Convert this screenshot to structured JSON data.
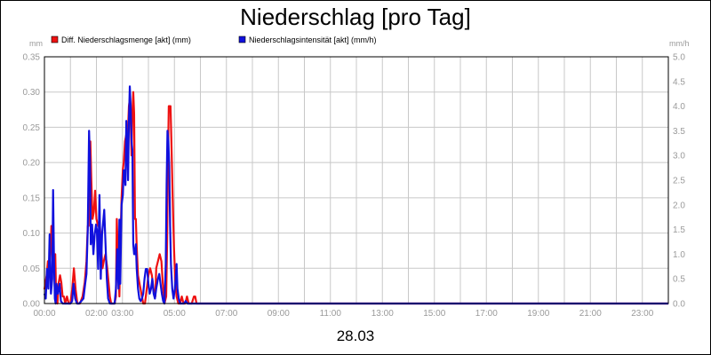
{
  "chart_data": {
    "type": "line",
    "title": "Niederschlag [pro Tag]",
    "xlabel": "28.03",
    "ylabel": "mm",
    "y2label": "mm/h",
    "x_domain": [
      0,
      1440
    ],
    "ylim": [
      0,
      0.35
    ],
    "y2lim": [
      0,
      5.0
    ],
    "yticks": [
      "0.00",
      "0.05",
      "0.10",
      "0.15",
      "0.20",
      "0.25",
      "0.30",
      "0.35"
    ],
    "y2ticks": [
      "0.0",
      "0.5",
      "1.0",
      "1.5",
      "2.0",
      "2.5",
      "3.0",
      "3.5",
      "4.0",
      "4.5",
      "5.0"
    ],
    "xticks": [
      {
        "t": 0,
        "label": "00:00"
      },
      {
        "t": 120,
        "label": "02:00"
      },
      {
        "t": 180,
        "label": "03:00"
      },
      {
        "t": 300,
        "label": "05:00"
      },
      {
        "t": 420,
        "label": "07:00"
      },
      {
        "t": 540,
        "label": "09:00"
      },
      {
        "t": 660,
        "label": "11:00"
      },
      {
        "t": 780,
        "label": "13:00"
      },
      {
        "t": 900,
        "label": "15:00"
      },
      {
        "t": 1020,
        "label": "17:00"
      },
      {
        "t": 1140,
        "label": "19:00"
      },
      {
        "t": 1260,
        "label": "21:00"
      },
      {
        "t": 1380,
        "label": "23:00"
      }
    ],
    "grid": true,
    "legend": "top-left",
    "series": [
      {
        "name": "Diff. Niederschlagsmenge [akt] (mm)",
        "color": "#ee1111",
        "axis": "left",
        "points": [
          [
            0,
            0.02
          ],
          [
            5,
            0.04
          ],
          [
            8,
            0.06
          ],
          [
            11,
            0.04
          ],
          [
            14,
            0.07
          ],
          [
            16,
            0.11
          ],
          [
            19,
            0.07
          ],
          [
            22,
            0.06
          ],
          [
            25,
            0.07
          ],
          [
            27,
            0.01
          ],
          [
            30,
            0.0
          ],
          [
            33,
            0.03
          ],
          [
            36,
            0.04
          ],
          [
            39,
            0.03
          ],
          [
            42,
            0.01
          ],
          [
            45,
            0.01
          ],
          [
            48,
            0.0
          ],
          [
            52,
            0.01
          ],
          [
            56,
            0.0
          ],
          [
            60,
            0.0
          ],
          [
            64,
            0.02
          ],
          [
            68,
            0.05
          ],
          [
            72,
            0.02
          ],
          [
            76,
            0.0
          ],
          [
            82,
            0.0
          ],
          [
            88,
            0.01
          ],
          [
            93,
            0.03
          ],
          [
            97,
            0.06
          ],
          [
            100,
            0.11
          ],
          [
            102,
            0.11
          ],
          [
            104,
            0.17
          ],
          [
            106,
            0.23
          ],
          [
            108,
            0.18
          ],
          [
            111,
            0.12
          ],
          [
            114,
            0.13
          ],
          [
            117,
            0.16
          ],
          [
            120,
            0.12
          ],
          [
            124,
            0.11
          ],
          [
            128,
            0.11
          ],
          [
            131,
            0.08
          ],
          [
            134,
            0.05
          ],
          [
            137,
            0.06
          ],
          [
            141,
            0.07
          ],
          [
            145,
            0.05
          ],
          [
            148,
            0.03
          ],
          [
            151,
            0.01
          ],
          [
            154,
            0.0
          ],
          [
            158,
            0.0
          ],
          [
            162,
            0.0
          ],
          [
            165,
            0.01
          ],
          [
            167,
            0.12
          ],
          [
            170,
            0.06
          ],
          [
            173,
            0.01
          ],
          [
            176,
            0.1
          ],
          [
            178,
            0.15
          ],
          [
            181,
            0.19
          ],
          [
            183,
            0.2
          ],
          [
            186,
            0.23
          ],
          [
            189,
            0.24
          ],
          [
            191,
            0.22
          ],
          [
            193,
            0.25
          ],
          [
            195,
            0.28
          ],
          [
            197,
            0.29
          ],
          [
            199,
            0.26
          ],
          [
            201,
            0.21
          ],
          [
            203,
            0.27
          ],
          [
            205,
            0.3
          ],
          [
            207,
            0.27
          ],
          [
            209,
            0.12
          ],
          [
            211,
            0.12
          ],
          [
            213,
            0.08
          ],
          [
            216,
            0.04
          ],
          [
            219,
            0.03
          ],
          [
            222,
            0.02
          ],
          [
            225,
            0.01
          ],
          [
            228,
            0.0
          ],
          [
            232,
            0.0
          ],
          [
            236,
            0.02
          ],
          [
            240,
            0.04
          ],
          [
            244,
            0.05
          ],
          [
            248,
            0.04
          ],
          [
            252,
            0.02
          ],
          [
            256,
            0.01
          ],
          [
            258,
            0.05
          ],
          [
            262,
            0.06
          ],
          [
            266,
            0.07
          ],
          [
            270,
            0.06
          ],
          [
            273,
            0.03
          ],
          [
            277,
            0.0
          ],
          [
            281,
            0.01
          ],
          [
            283,
            0.08
          ],
          [
            285,
            0.2
          ],
          [
            287,
            0.28
          ],
          [
            289,
            0.28
          ],
          [
            291,
            0.28
          ],
          [
            293,
            0.23
          ],
          [
            296,
            0.15
          ],
          [
            299,
            0.08
          ],
          [
            302,
            0.03
          ],
          [
            305,
            0.01
          ],
          [
            309,
            0.0
          ],
          [
            313,
            0.0
          ],
          [
            317,
            0.01
          ],
          [
            321,
            0.0
          ],
          [
            325,
            0.0
          ],
          [
            329,
            0.01
          ],
          [
            333,
            0.0
          ],
          [
            340,
            0.0
          ],
          [
            345,
            0.01
          ],
          [
            348,
            0.01
          ],
          [
            351,
            0.0
          ],
          [
            1440,
            0.0
          ]
        ]
      },
      {
        "name": "Niederschlagsintensität [akt] (mm/h)",
        "color": "#1010dd",
        "axis": "right",
        "points": [
          [
            0,
            0.2
          ],
          [
            3,
            0.1
          ],
          [
            6,
            0.7
          ],
          [
            9,
            0.3
          ],
          [
            12,
            1.4
          ],
          [
            15,
            0.2
          ],
          [
            18,
            0.5
          ],
          [
            20,
            2.3
          ],
          [
            22,
            0.9
          ],
          [
            24,
            0.1
          ],
          [
            26,
            0.0
          ],
          [
            28,
            0.4
          ],
          [
            31,
            0.2
          ],
          [
            35,
            0.4
          ],
          [
            38,
            0.05
          ],
          [
            42,
            0.0
          ],
          [
            48,
            0.0
          ],
          [
            55,
            0.0
          ],
          [
            60,
            0.0
          ],
          [
            64,
            0.05
          ],
          [
            67,
            0.4
          ],
          [
            71,
            0.1
          ],
          [
            75,
            0.0
          ],
          [
            80,
            0.0
          ],
          [
            85,
            0.05
          ],
          [
            90,
            0.1
          ],
          [
            94,
            0.4
          ],
          [
            97,
            0.6
          ],
          [
            100,
            1.5
          ],
          [
            103,
            3.5
          ],
          [
            105,
            2.9
          ],
          [
            107,
            1.2
          ],
          [
            110,
            1.6
          ],
          [
            113,
            1.0
          ],
          [
            116,
            1.4
          ],
          [
            119,
            1.6
          ],
          [
            121,
            1.5
          ],
          [
            124,
            0.7
          ],
          [
            127,
            2.2
          ],
          [
            130,
            0.5
          ],
          [
            133,
            1.4
          ],
          [
            136,
            1.7
          ],
          [
            138,
            1.9
          ],
          [
            141,
            1.2
          ],
          [
            144,
            0.5
          ],
          [
            147,
            0.1
          ],
          [
            151,
            0.0
          ],
          [
            157,
            0.0
          ],
          [
            162,
            0.0
          ],
          [
            165,
            0.3
          ],
          [
            168,
            1.1
          ],
          [
            171,
            0.3
          ],
          [
            173,
            1.7
          ],
          [
            175,
            0.4
          ],
          [
            178,
            2.0
          ],
          [
            181,
            2.2
          ],
          [
            183,
            2.7
          ],
          [
            185,
            2.7
          ],
          [
            187,
            2.4
          ],
          [
            189,
            3.7
          ],
          [
            191,
            3.2
          ],
          [
            193,
            2.5
          ],
          [
            195,
            3.7
          ],
          [
            197,
            4.4
          ],
          [
            199,
            4.0
          ],
          [
            201,
            3.3
          ],
          [
            203,
            3.1
          ],
          [
            205,
            1.2
          ],
          [
            207,
            1.0
          ],
          [
            209,
            1.0
          ],
          [
            211,
            1.2
          ],
          [
            213,
            0.7
          ],
          [
            216,
            0.3
          ],
          [
            219,
            0.1
          ],
          [
            222,
            0.05
          ],
          [
            225,
            0.1
          ],
          [
            228,
            0.2
          ],
          [
            231,
            0.5
          ],
          [
            234,
            0.7
          ],
          [
            237,
            0.7
          ],
          [
            240,
            0.4
          ],
          [
            243,
            0.2
          ],
          [
            246,
            0.3
          ],
          [
            249,
            0.5
          ],
          [
            252,
            0.2
          ],
          [
            255,
            0.1
          ],
          [
            258,
            0.3
          ],
          [
            262,
            0.5
          ],
          [
            265,
            0.6
          ],
          [
            268,
            0.4
          ],
          [
            271,
            0.2
          ],
          [
            274,
            0.05
          ],
          [
            277,
            0.0
          ],
          [
            280,
            0.8
          ],
          [
            282,
            2.4
          ],
          [
            284,
            3.5
          ],
          [
            286,
            3.3
          ],
          [
            288,
            2.8
          ],
          [
            290,
            1.6
          ],
          [
            292,
            0.8
          ],
          [
            295,
            0.3
          ],
          [
            298,
            0.1
          ],
          [
            301,
            0.3
          ],
          [
            303,
            0.5
          ],
          [
            305,
            0.8
          ],
          [
            307,
            0.3
          ],
          [
            310,
            0.1
          ],
          [
            313,
            0.0
          ],
          [
            318,
            0.0
          ],
          [
            322,
            0.0
          ],
          [
            326,
            0.05
          ],
          [
            330,
            0.0
          ],
          [
            1440,
            0.0
          ]
        ]
      }
    ]
  }
}
